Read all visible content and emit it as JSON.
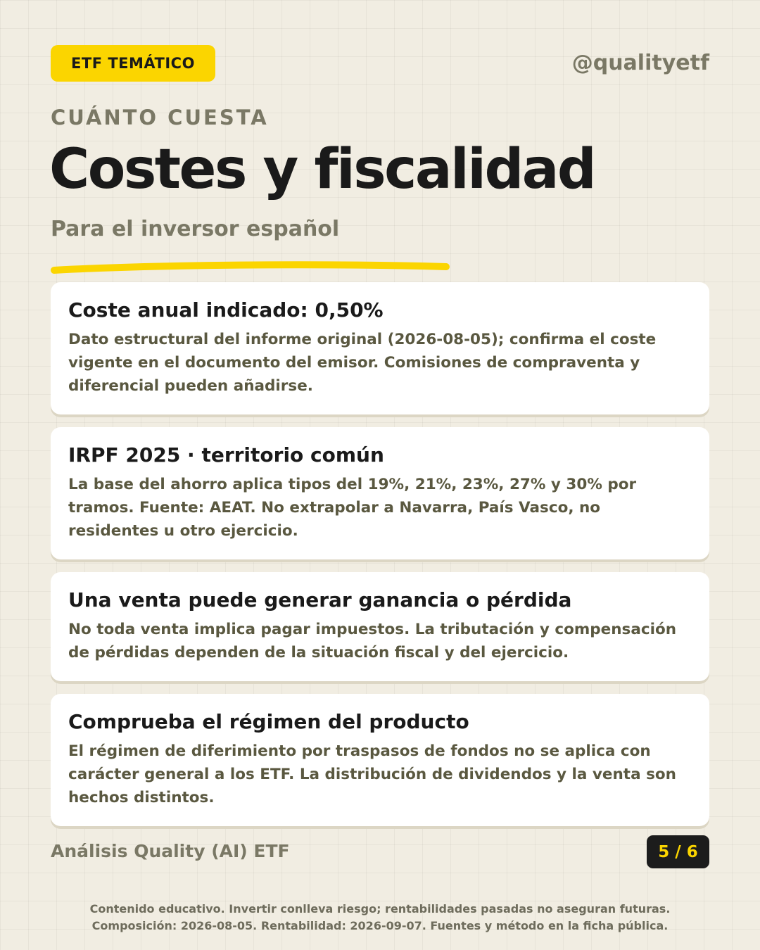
{
  "header": {
    "badge": "ETF TEMÁTICO",
    "handle": "@qualityetf",
    "kicker": "CUÁNTO CUESTA",
    "title": "Costes y fiscalidad",
    "subtitle": "Para el inversor español",
    "accent_color": "#fbd500"
  },
  "cards": [
    {
      "title": "Coste anual indicado: 0,50%",
      "body": "Dato estructural del informe original (2026-08-05); confirma el coste vigente en el documento del emisor. Comisiones de compraventa y diferencial pueden añadirse."
    },
    {
      "title": "IRPF 2025 · territorio común",
      "body": "La base del ahorro aplica tipos del 19%, 21%, 23%, 27% y 30% por tramos. Fuente: AEAT. No extrapolar a Navarra, País Vasco, no residentes u otro ejercicio."
    },
    {
      "title": "Una venta puede generar ganancia o pérdida",
      "body": "No toda venta implica pagar impuestos. La tributación y compensación de pérdidas dependen de la situación fiscal y del ejercicio."
    },
    {
      "title": "Comprueba el régimen del producto",
      "body": "El régimen de diferimiento por traspasos de fondos no se aplica con carácter general a los ETF. La distribución de dividendos y la venta son hechos distintos."
    }
  ],
  "footer": {
    "brand": "Análisis Quality (AI) ETF",
    "pager": "5 / 6",
    "disclaimer_line1": "Contenido educativo. Invertir conlleva riesgo; rentabilidades pasadas no aseguran futuras.",
    "disclaimer_line2": "Composición: 2026-08-05. Rentabilidad: 2026-09-07. Fuentes y método en la ficha pública."
  }
}
